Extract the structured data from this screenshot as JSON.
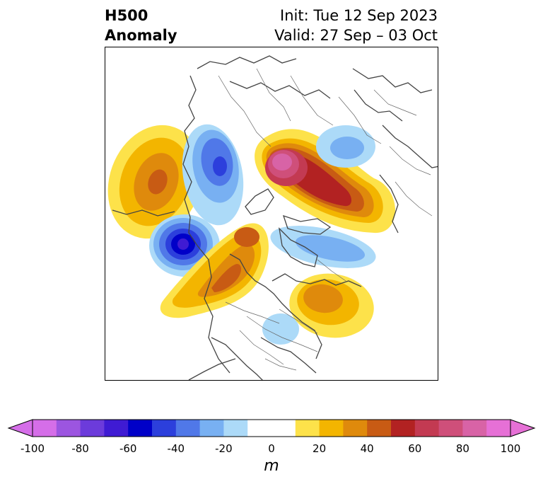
{
  "header": {
    "title_line1": "H500",
    "title_line2": "Anomaly",
    "init_text": "Init: Tue 12 Sep 2023",
    "valid_text": "Valid: 27 Sep – 03 Oct"
  },
  "colorbar": {
    "unit_label": "m",
    "ticks": [
      "-100",
      "-80",
      "-60",
      "-40",
      "-20",
      "0",
      "20",
      "40",
      "60",
      "80",
      "100"
    ],
    "bins": [
      {
        "color": "#d56ee8"
      },
      {
        "color": "#9c55e0"
      },
      {
        "color": "#6c3bdb"
      },
      {
        "color": "#3f1bd3"
      },
      {
        "color": "#0000c8"
      },
      {
        "color": "#2c3fdc"
      },
      {
        "color": "#5078e8"
      },
      {
        "color": "#78b0f2"
      },
      {
        "color": "#acdaf8"
      },
      {
        "color": "#ffffff"
      },
      {
        "color": "#ffffff"
      },
      {
        "color": "#fde24a"
      },
      {
        "color": "#f3b500"
      },
      {
        "color": "#df8a0c"
      },
      {
        "color": "#c85b14"
      },
      {
        "color": "#b22222"
      },
      {
        "color": "#c33a52"
      },
      {
        "color": "#cf4f7a"
      },
      {
        "color": "#d863a6"
      },
      {
        "color": "#e670d6"
      }
    ],
    "extend_low_color": "#d56ee8",
    "extend_high_color": "#e670d6"
  },
  "map": {
    "projection": "north-polar-stereographic",
    "anomaly_centers": [
      {
        "region": "hudson-bay-ne-canada",
        "sign": "positive",
        "peak_m": 85
      },
      {
        "region": "gulf-of-alaska-west",
        "sign": "positive",
        "peak_m": 45
      },
      {
        "region": "alaska",
        "sign": "negative",
        "peak_m": -55
      },
      {
        "region": "chukotka-bering",
        "sign": "negative",
        "peak_m": -45
      },
      {
        "region": "northern-eurasia",
        "sign": "positive",
        "peak_m": 45
      },
      {
        "region": "north-atlantic-scandinavia",
        "sign": "positive",
        "peak_m": 35
      },
      {
        "region": "siberia-arctic",
        "sign": "negative",
        "peak_m": -25
      },
      {
        "region": "nw-atlantic-greenland",
        "sign": "negative",
        "peak_m": -25
      },
      {
        "region": "central-europe",
        "sign": "negative",
        "peak_m": -15
      }
    ]
  }
}
